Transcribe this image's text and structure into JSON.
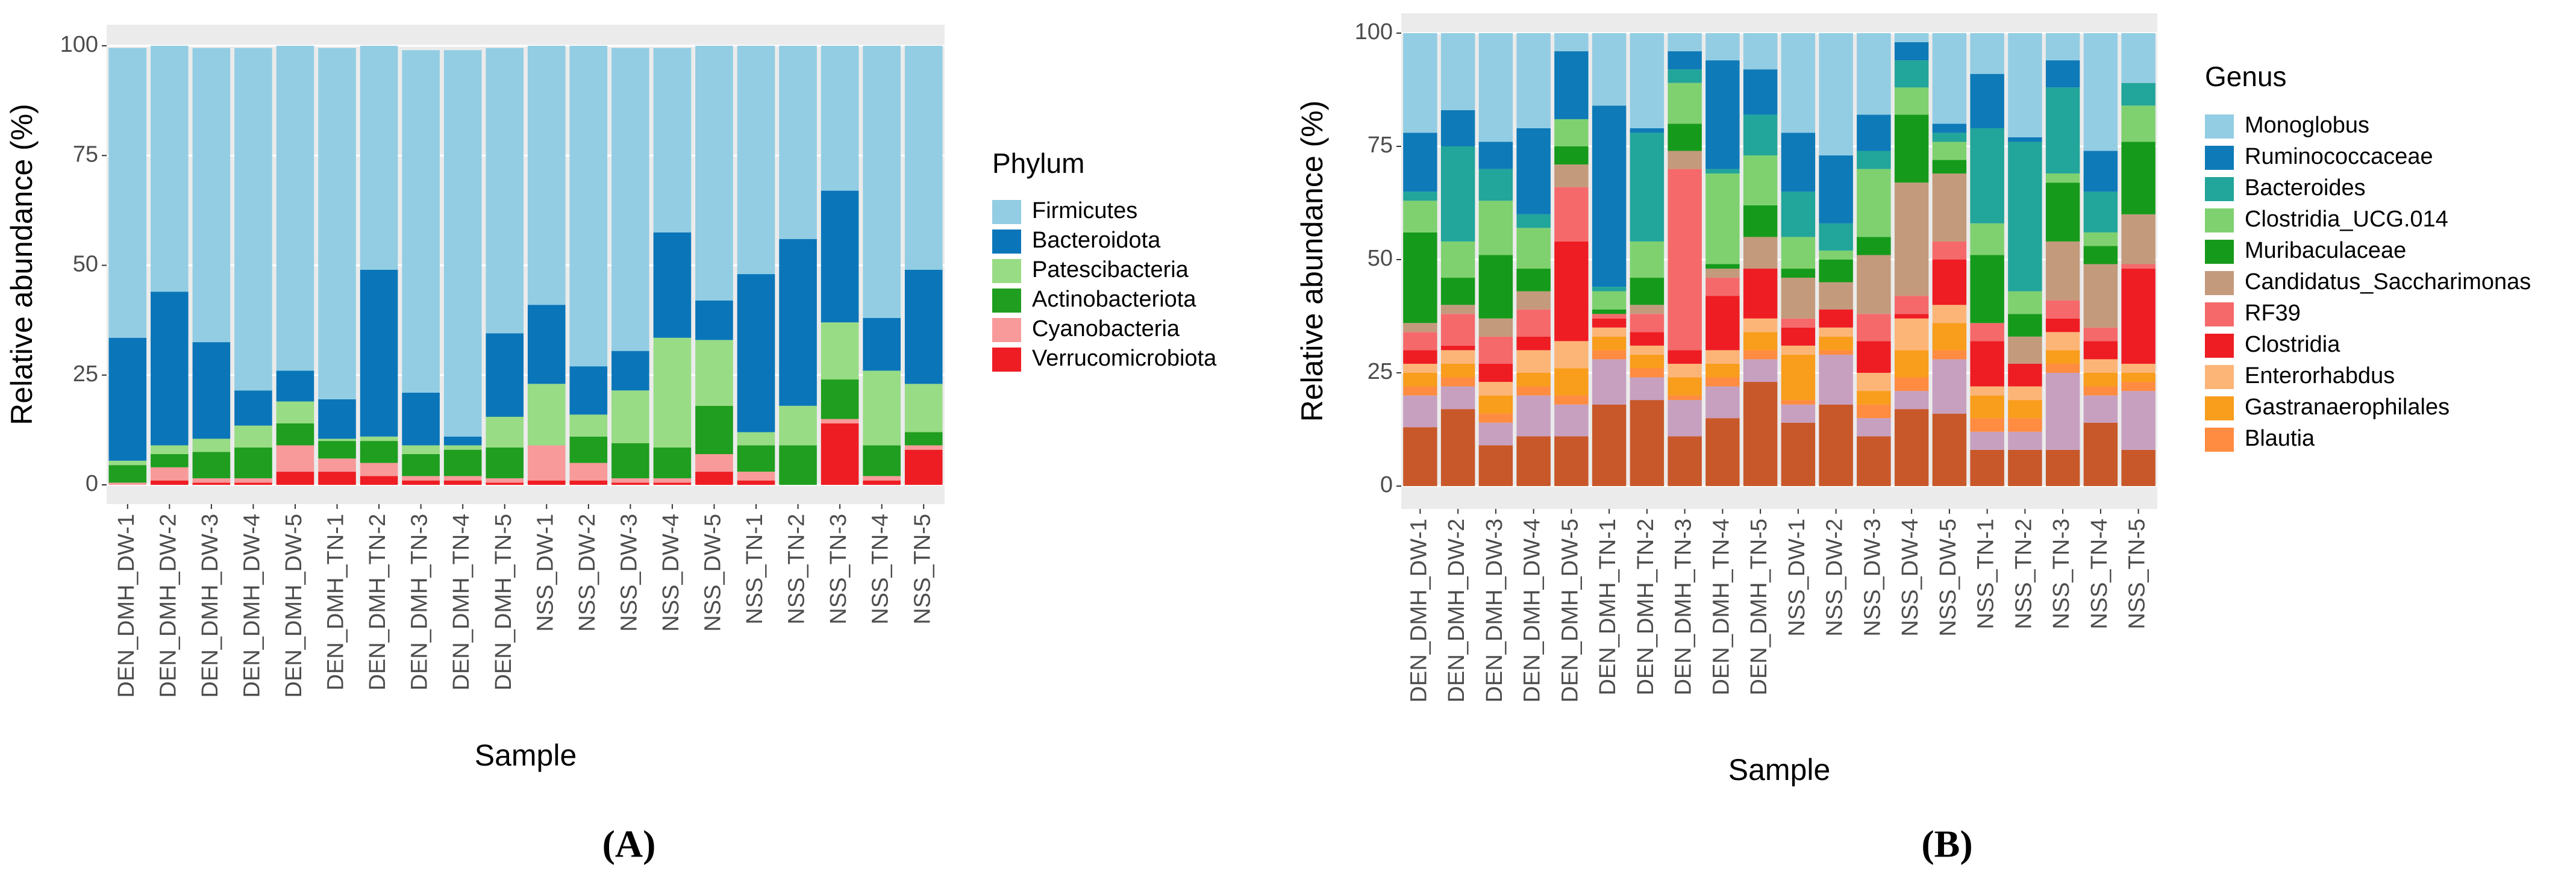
{
  "chart_data": [
    {
      "type": "bar",
      "stacked": true,
      "panel_label": "(A)",
      "x_label": "Sample",
      "y_label": "Relative abundance (%)",
      "legend_title": "Phylum",
      "grid": true,
      "categories": [
        "DEN_DMH_DW-1",
        "DEN_DMH_DW-2",
        "DEN_DMH_DW-3",
        "DEN_DMH_DW-4",
        "DEN_DMH_DW-5",
        "DEN_DMH_TN-1",
        "DEN_DMH_TN-2",
        "DEN_DMH_TN-3",
        "DEN_DMH_TN-4",
        "DEN_DMH_TN-5",
        "NSS_DW-1",
        "NSS_DW-2",
        "NSS_DW-3",
        "NSS_DW-4",
        "NSS_DW-5",
        "NSS_TN-1",
        "NSS_TN-2",
        "NSS_TN-3",
        "NSS_TN-4",
        "NSS_TN-5"
      ],
      "ylim": [
        0,
        100
      ],
      "yticks": [
        0,
        25,
        50,
        75,
        100
      ],
      "series": [
        {
          "name": "Firmicutes",
          "color": "#92cde3",
          "values": [
            66,
            56,
            67,
            78,
            74,
            80,
            51,
            78,
            88,
            65,
            59,
            73,
            69,
            42,
            58,
            52,
            44,
            33,
            62,
            51
          ]
        },
        {
          "name": "Bacteroidota",
          "color": "#0a76b9",
          "values": [
            28,
            35,
            22,
            8,
            7,
            9,
            38,
            12,
            2,
            19,
            18,
            11,
            9,
            24,
            9,
            36,
            38,
            30,
            12,
            26
          ]
        },
        {
          "name": "Patescibacteria",
          "color": "#98dc85",
          "values": [
            1,
            2,
            3,
            5,
            5,
            0.5,
            1,
            2,
            1,
            7,
            14,
            5,
            12,
            25,
            15,
            3,
            9,
            13,
            17,
            11
          ]
        },
        {
          "name": "Actinobacteriota",
          "color": "#1f9e1f",
          "values": [
            4,
            3,
            6,
            7,
            5,
            4,
            5,
            5,
            6,
            7,
            0,
            6,
            8,
            7,
            11,
            6,
            9,
            9,
            7,
            3
          ]
        },
        {
          "name": "Cyanobacteria",
          "color": "#f89a9a",
          "values": [
            0.5,
            3,
            1,
            1,
            6,
            3,
            3,
            1,
            1,
            1,
            8,
            4,
            1,
            1,
            4,
            2,
            0,
            1,
            1,
            1
          ]
        },
        {
          "name": "Verrucomicrobiota",
          "color": "#ee1d23",
          "values": [
            0,
            1,
            0.5,
            0.5,
            3,
            3,
            2,
            1,
            1,
            0.5,
            1,
            1,
            0.5,
            0.5,
            3,
            1,
            0,
            14,
            1,
            8
          ]
        }
      ]
    },
    {
      "type": "bar",
      "stacked": true,
      "panel_label": "(B)",
      "x_label": "Sample",
      "y_label": "Relative abundance (%)",
      "legend_title": "Genus",
      "grid": true,
      "categories": [
        "DEN_DMH_DW-1",
        "DEN_DMH_DW-2",
        "DEN_DMH_DW-3",
        "DEN_DMH_DW-4",
        "DEN_DMH_DW-5",
        "DEN_DMH_TN-1",
        "DEN_DMH_TN-2",
        "DEN_DMH_TN-3",
        "DEN_DMH_TN-4",
        "DEN_DMH_TN-5",
        "NSS_DW-1",
        "NSS_DW-2",
        "NSS_DW-3",
        "NSS_DW-4",
        "NSS_DW-5",
        "NSS_TN-1",
        "NSS_TN-2",
        "NSS_TN-3",
        "NSS_TN-4",
        "NSS_TN-5"
      ],
      "ylim": [
        0,
        100
      ],
      "yticks": [
        0,
        25,
        50,
        75,
        100
      ],
      "series": [
        {
          "name": "Monoglobus",
          "color": "#93cde3",
          "values": [
            22,
            17,
            24,
            21,
            4,
            16,
            21,
            4,
            6,
            8,
            22,
            27,
            18,
            2,
            20,
            9,
            23,
            6,
            26,
            11
          ]
        },
        {
          "name": "Ruminococcaceae",
          "color": "#0e7ab8",
          "values": [
            13,
            8,
            6,
            19,
            15,
            40,
            1,
            4,
            24,
            10,
            13,
            15,
            8,
            4,
            2,
            12,
            1,
            6,
            9,
            0
          ]
        },
        {
          "name": "Bacteroides",
          "color": "#22a59a",
          "values": [
            2,
            21,
            7,
            3,
            0,
            1,
            24,
            3,
            1,
            9,
            10,
            6,
            4,
            6,
            2,
            21,
            33,
            19,
            9,
            5
          ]
        },
        {
          "name": "Clostridia_UCG.014",
          "color": "#7fd170",
          "values": [
            7,
            8,
            12,
            9,
            6,
            4,
            8,
            9,
            20,
            11,
            7,
            2,
            15,
            6,
            4,
            7,
            5,
            2,
            3,
            8
          ]
        },
        {
          "name": "Muribaculaceae",
          "color": "#169a1b",
          "values": [
            20,
            6,
            14,
            5,
            4,
            1,
            6,
            6,
            1,
            7,
            2,
            5,
            4,
            15,
            3,
            15,
            5,
            13,
            4,
            16
          ]
        },
        {
          "name": "Candidatus_Saccharimonas",
          "color": "#c49a7c",
          "values": [
            2,
            2,
            4,
            4,
            5,
            0,
            2,
            4,
            2,
            7,
            9,
            6,
            13,
            25,
            15,
            0,
            6,
            13,
            14,
            11
          ]
        },
        {
          "name": "RF39",
          "color": "#f5696b",
          "values": [
            4,
            7,
            6,
            6,
            12,
            1,
            4,
            40,
            4,
            0,
            2,
            0,
            6,
            4,
            4,
            4,
            0,
            4,
            3,
            1
          ]
        },
        {
          "name": "Clostridia",
          "color": "#ee1d23",
          "values": [
            3,
            1,
            4,
            3,
            22,
            2,
            3,
            3,
            12,
            11,
            4,
            4,
            7,
            1,
            10,
            10,
            5,
            3,
            4,
            21
          ]
        },
        {
          "name": "Enterorhabdus",
          "color": "#fdb577",
          "values": [
            2,
            3,
            3,
            5,
            6,
            2,
            2,
            3,
            3,
            3,
            2,
            2,
            4,
            7,
            4,
            2,
            3,
            4,
            3,
            2
          ]
        },
        {
          "name": "Gastranaerophilales",
          "color": "#f99d1c",
          "values": [
            3,
            3,
            4,
            3,
            6,
            3,
            3,
            4,
            3,
            4,
            10,
            3,
            3,
            6,
            6,
            5,
            4,
            3,
            3,
            2
          ]
        },
        {
          "name": "Blautia",
          "color": "#ff8c40",
          "values": [
            2,
            2,
            2,
            2,
            2,
            2,
            2,
            1,
            2,
            2,
            1,
            1,
            3,
            3,
            2,
            3,
            3,
            2,
            2,
            2
          ]
        },
        {
          "color": "#c7a0c0",
          "values": [
            7,
            5,
            5,
            9,
            7,
            10,
            5,
            8,
            7,
            5,
            4,
            11,
            4,
            4,
            12,
            4,
            4,
            17,
            6,
            13
          ]
        },
        {
          "color": "#c8582a",
          "values": [
            13,
            17,
            9,
            11,
            11,
            18,
            19,
            11,
            15,
            23,
            14,
            18,
            11,
            17,
            16,
            8,
            8,
            8,
            14,
            8
          ]
        }
      ]
    }
  ]
}
